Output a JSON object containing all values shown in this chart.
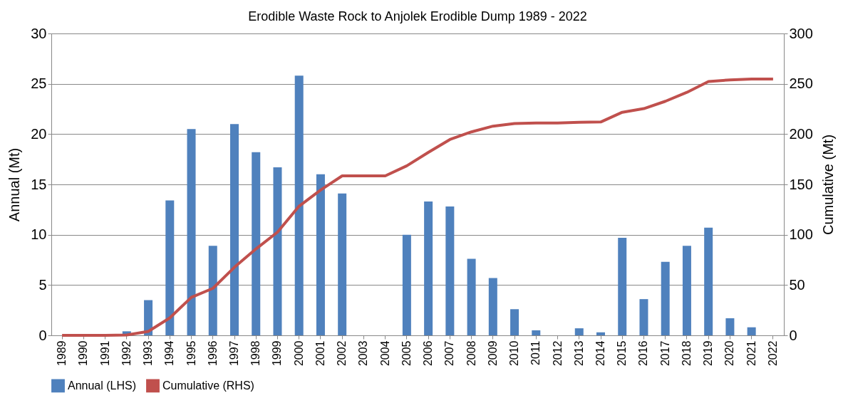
{
  "chart_data": {
    "type": "bar",
    "title": "Erodible Waste Rock to Anjolek Erodible Dump 1989 - 2022",
    "categories": [
      "1989",
      "1990",
      "1991",
      "1992",
      "1993",
      "1994",
      "1995",
      "1996",
      "1997",
      "1998",
      "1999",
      "2000",
      "2001",
      "2002",
      "2003",
      "2004",
      "2005",
      "2006",
      "2007",
      "2008",
      "2009",
      "2010",
      "2011",
      "2012",
      "2013",
      "2014",
      "2015",
      "2016",
      "2017",
      "2018",
      "2019",
      "2020",
      "2021",
      "2022"
    ],
    "series": [
      {
        "name": "Annual (LHS)",
        "color": "#4f81bd",
        "values": [
          0,
          0,
          0,
          0.4,
          3.5,
          13.4,
          20.5,
          8.9,
          21.0,
          18.2,
          16.7,
          25.8,
          16.0,
          14.1,
          0,
          0,
          10.0,
          13.3,
          12.8,
          7.6,
          5.7,
          2.6,
          0.5,
          0,
          0.7,
          0.3,
          9.7,
          3.6,
          7.3,
          8.9,
          10.7,
          1.7,
          0.8,
          0
        ]
      },
      {
        "name": "Cumulative (RHS)",
        "type": "line",
        "axis": "y2",
        "color": "#c0504d",
        "values": [
          0,
          0,
          0,
          0.4,
          3.9,
          17.3,
          37.8,
          46.7,
          67.7,
          85.9,
          102.6,
          128.4,
          144.4,
          158.5,
          158.5,
          158.5,
          168.5,
          181.8,
          194.6,
          202.2,
          207.9,
          210.5,
          211.0,
          211.0,
          211.7,
          212.0,
          221.7,
          225.3,
          232.6,
          241.5,
          252.2,
          253.9,
          254.7,
          254.7
        ]
      }
    ],
    "ylabel": "Annual (Mt)",
    "y2label": "Cumulative (Mt)",
    "ylim": [
      0,
      30
    ],
    "yticks": [
      0,
      5,
      10,
      15,
      20,
      25,
      30
    ],
    "y2lim": [
      0,
      300
    ],
    "y2ticks": [
      0,
      50,
      100,
      150,
      200,
      250,
      300
    ],
    "grid": "y",
    "legend": "bottom",
    "marker": "none",
    "line_style": "solid"
  }
}
